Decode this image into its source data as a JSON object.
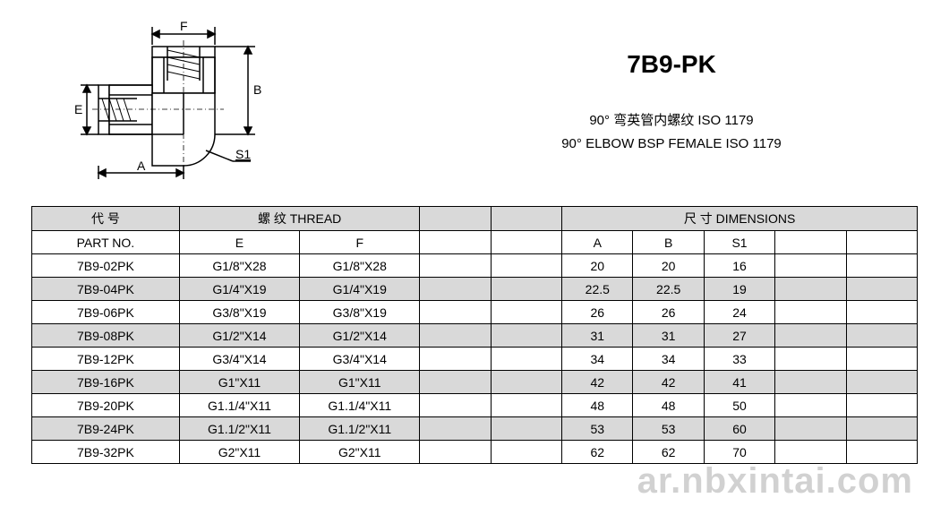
{
  "title": {
    "code": "7B9-PK",
    "desc_cn": "90° 弯英管内螺纹 ISO 1179",
    "desc_en": "90° ELBOW BSP FEMALE  ISO 1179"
  },
  "diagram": {
    "labels": {
      "E": "E",
      "F": "F",
      "A": "A",
      "B": "B",
      "S1": "S1"
    },
    "stroke": "#000000",
    "fill": "#ffffff",
    "hatch": "#000000"
  },
  "table": {
    "header1": {
      "part_cn": "代  号",
      "thread": "螺  纹  THREAD",
      "dimensions": "尺  寸    DIMENSIONS"
    },
    "header2": {
      "part": "PART NO.",
      "E": "E",
      "F": "F",
      "A": "A",
      "B": "B",
      "S1": "S1"
    },
    "rows": [
      {
        "part": "7B9-02PK",
        "E": "G1/8\"X28",
        "F": "G1/8\"X28",
        "A": "20",
        "B": "20",
        "S1": "16"
      },
      {
        "part": "7B9-04PK",
        "E": "G1/4\"X19",
        "F": "G1/4\"X19",
        "A": "22.5",
        "B": "22.5",
        "S1": "19"
      },
      {
        "part": "7B9-06PK",
        "E": "G3/8\"X19",
        "F": "G3/8\"X19",
        "A": "26",
        "B": "26",
        "S1": "24"
      },
      {
        "part": "7B9-08PK",
        "E": "G1/2\"X14",
        "F": "G1/2\"X14",
        "A": "31",
        "B": "31",
        "S1": "27"
      },
      {
        "part": "7B9-12PK",
        "E": "G3/4\"X14",
        "F": "G3/4\"X14",
        "A": "34",
        "B": "34",
        "S1": "33"
      },
      {
        "part": "7B9-16PK",
        "E": "G1\"X11",
        "F": "G1\"X11",
        "A": "42",
        "B": "42",
        "S1": "41"
      },
      {
        "part": "7B9-20PK",
        "E": "G1.1/4\"X11",
        "F": "G1.1/4\"X11",
        "A": "48",
        "B": "48",
        "S1": "50"
      },
      {
        "part": "7B9-24PK",
        "E": "G1.1/2\"X11",
        "F": "G1.1/2\"X11",
        "A": "53",
        "B": "53",
        "S1": "60"
      },
      {
        "part": "7B9-32PK",
        "E": "G2\"X11",
        "F": "G2\"X11",
        "A": "62",
        "B": "62",
        "S1": "70"
      }
    ]
  },
  "watermark": "ar.nbxintai.com",
  "colors": {
    "header_bg": "#d9d9d9",
    "row_even_bg": "#d9d9d9",
    "row_odd_bg": "#ffffff",
    "border": "#000000",
    "text": "#000000"
  }
}
